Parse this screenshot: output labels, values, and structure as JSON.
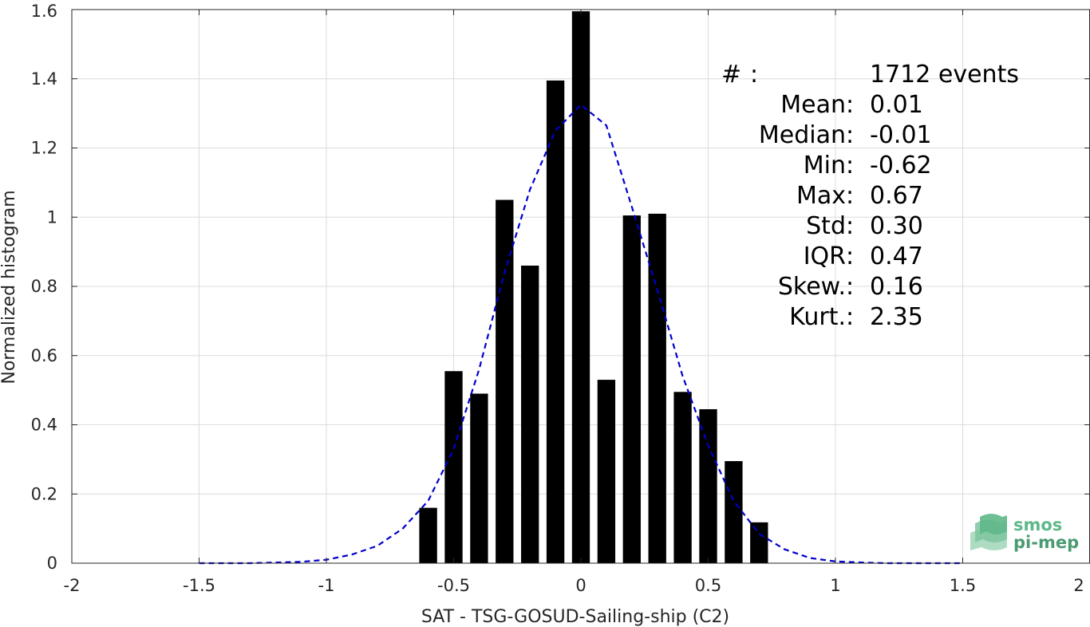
{
  "chart_data": {
    "type": "bar",
    "xlabel": "SAT - TSG-GOSUD-Sailing-ship (C2)",
    "ylabel": "Normalized histogram",
    "xlim": [
      -2,
      2
    ],
    "ylim": [
      0,
      1.6
    ],
    "xticks": [
      -2,
      -1.5,
      -1,
      -0.5,
      0,
      0.5,
      1,
      1.5,
      2
    ],
    "yticks": [
      0,
      0.2,
      0.4,
      0.6,
      0.8,
      1,
      1.2,
      1.4,
      1.6
    ],
    "xtick_labels": [
      "-2",
      "-1.5",
      "-1",
      "-0.5",
      "0",
      "0.5",
      "1",
      "1.5",
      "2"
    ],
    "ytick_labels": [
      "0",
      "0.2",
      "0.4",
      "0.6",
      "0.8",
      "1",
      "1.2",
      "1.4",
      "1.6"
    ],
    "grid": true,
    "bar_width": 0.07,
    "bars": [
      {
        "x": -0.6,
        "y": 0.16
      },
      {
        "x": -0.5,
        "y": 0.555
      },
      {
        "x": -0.4,
        "y": 0.49
      },
      {
        "x": -0.3,
        "y": 1.05
      },
      {
        "x": -0.2,
        "y": 0.86
      },
      {
        "x": -0.1,
        "y": 1.395
      },
      {
        "x": 0.0,
        "y": 1.595
      },
      {
        "x": 0.1,
        "y": 0.53
      },
      {
        "x": 0.2,
        "y": 1.005
      },
      {
        "x": 0.3,
        "y": 1.01
      },
      {
        "x": 0.4,
        "y": 0.495
      },
      {
        "x": 0.5,
        "y": 0.445
      },
      {
        "x": 0.6,
        "y": 0.295
      },
      {
        "x": 0.7,
        "y": 0.118
      }
    ],
    "fit_curve": {
      "style": "dashed",
      "color": "#0000cc",
      "x": [
        -1.5,
        -1.4,
        -1.3,
        -1.2,
        -1.1,
        -1.0,
        -0.9,
        -0.8,
        -0.7,
        -0.6,
        -0.5,
        -0.4,
        -0.3,
        -0.2,
        -0.1,
        0.0,
        0.1,
        0.2,
        0.3,
        0.4,
        0.5,
        0.6,
        0.7,
        0.8,
        0.9,
        1.0,
        1.1,
        1.2,
        1.3,
        1.4,
        1.5
      ],
      "y": [
        0.0,
        0.0,
        0.0,
        0.002,
        0.004,
        0.01,
        0.025,
        0.05,
        0.1,
        0.18,
        0.33,
        0.56,
        0.84,
        1.08,
        1.25,
        1.325,
        1.265,
        1.03,
        0.79,
        0.54,
        0.34,
        0.18,
        0.085,
        0.04,
        0.015,
        0.005,
        0.002,
        0.0,
        0.0,
        0.0,
        0.0
      ]
    },
    "stats": [
      {
        "label": "#  ",
        "value": "1712 events"
      },
      {
        "label": "Mean",
        "value": "0.01"
      },
      {
        "label": "Median",
        "value": "-0.01"
      },
      {
        "label": "Min",
        "value": "-0.62"
      },
      {
        "label": "Max",
        "value": "0.67"
      },
      {
        "label": "Std",
        "value": "0.30"
      },
      {
        "label": "IQR",
        "value": "0.47"
      },
      {
        "label": "Skew.",
        "value": "0.16"
      },
      {
        "label": "Kurt.",
        "value": "2.35"
      }
    ],
    "bar_color": "#000000"
  },
  "logo": {
    "line1": "smos",
    "line2": "pi-mep",
    "icon": "layered-waves-icon",
    "color1": "#5fb88a",
    "color2": "#4a9a72"
  }
}
